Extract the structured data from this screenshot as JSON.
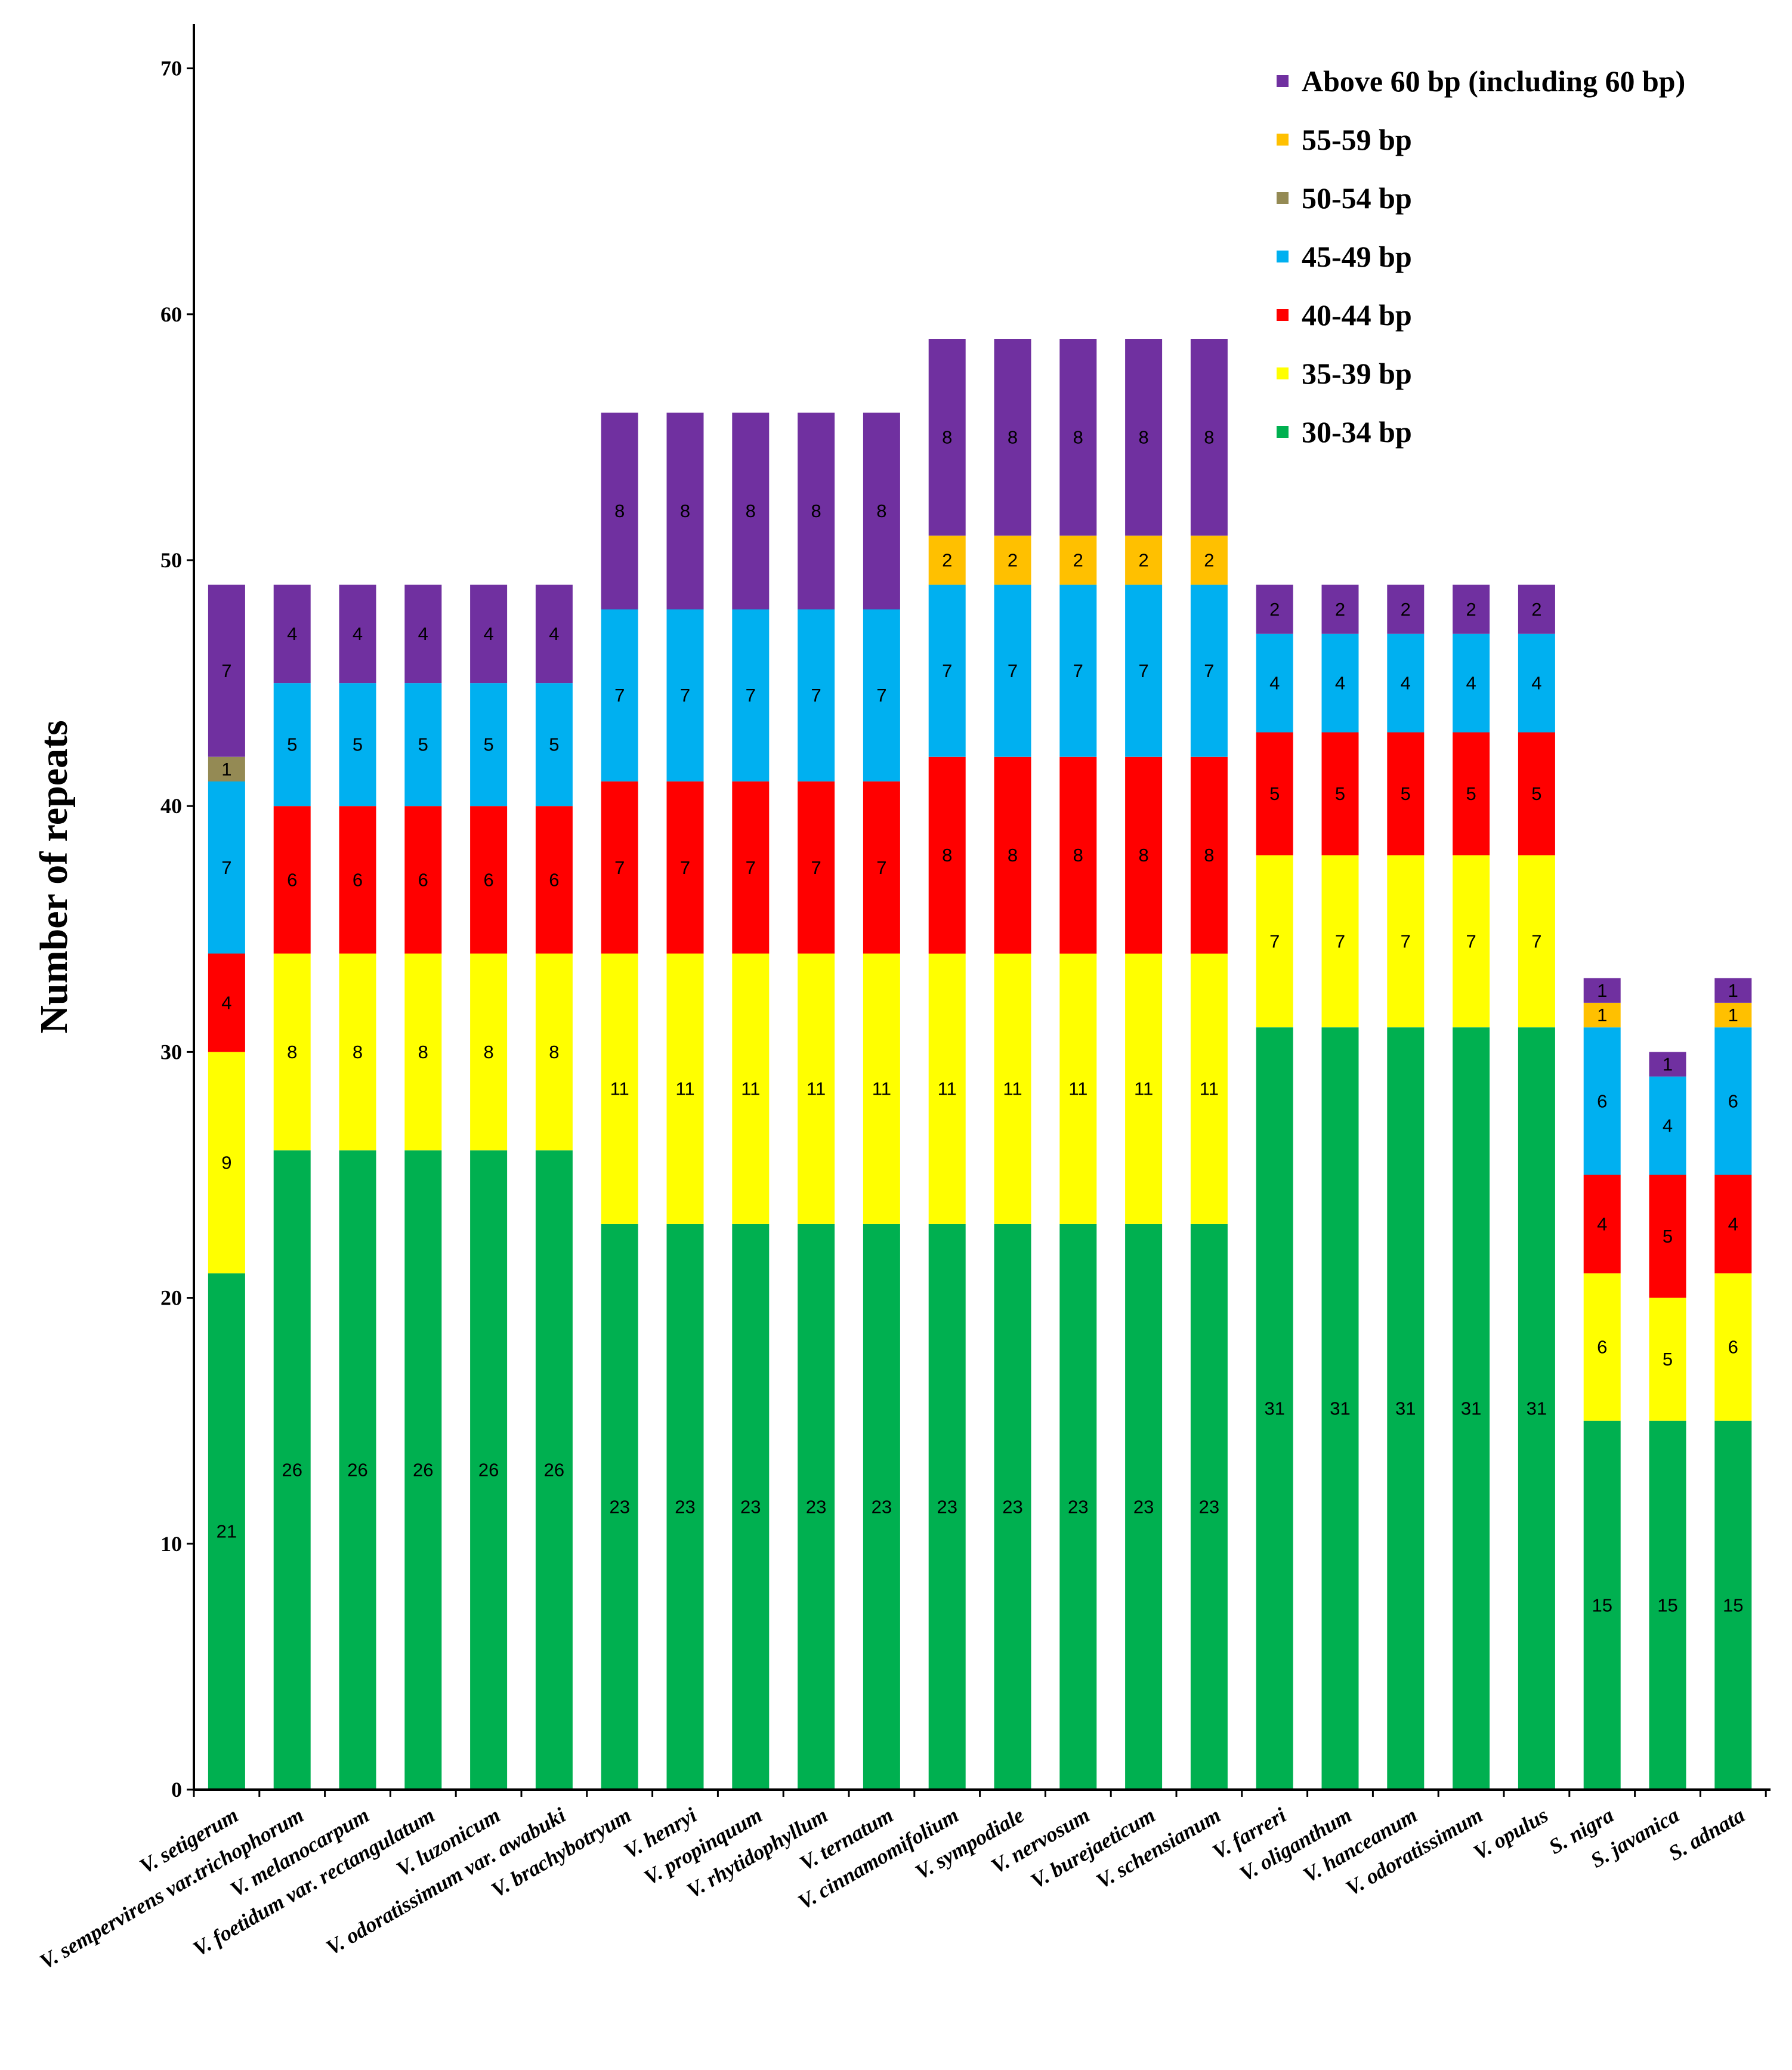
{
  "chart_data": {
    "type": "bar",
    "stacked": true,
    "title": "",
    "xlabel": "",
    "ylabel": "Number of repeats",
    "ylim": [
      0,
      70
    ],
    "yticks": [
      0,
      10,
      20,
      30,
      40,
      50,
      60,
      70
    ],
    "grid": false,
    "legend_position": "top-right",
    "categories": [
      "V. setigerum",
      "V. sempervirens var.trichophorum",
      "V. melanocarpum",
      "V. foetidum var. rectangulatum",
      "V. luzonicum",
      "V. odoratissimum var. awabuki",
      "V. brachybotryum",
      "V. henryi",
      "V. propinquum",
      "V. rhytidophyllum",
      "V. ternatum",
      "V. cinnamomifolium",
      "V. sympodiale",
      "V. nervosum",
      "V. burejaeticum",
      "V. schensianum",
      "V. farreri",
      "V. oliganthum",
      "V. hanceanum",
      "V. odoratissimum",
      "V. opulus",
      "S. nigra",
      "S. javanica",
      "S. adnata"
    ],
    "series": [
      {
        "name": "30-34 bp",
        "color": "#00b050",
        "values": [
          21,
          26,
          26,
          26,
          26,
          26,
          23,
          23,
          23,
          23,
          23,
          23,
          23,
          23,
          23,
          23,
          31,
          31,
          31,
          31,
          31,
          15,
          15,
          15
        ]
      },
      {
        "name": "35-39 bp",
        "color": "#ffff00",
        "values": [
          9,
          8,
          8,
          8,
          8,
          8,
          11,
          11,
          11,
          11,
          11,
          11,
          11,
          11,
          11,
          11,
          7,
          7,
          7,
          7,
          7,
          6,
          5,
          6
        ]
      },
      {
        "name": "40-44 bp",
        "color": "#ff0000",
        "values": [
          4,
          6,
          6,
          6,
          6,
          6,
          7,
          7,
          7,
          7,
          7,
          8,
          8,
          8,
          8,
          8,
          5,
          5,
          5,
          5,
          5,
          4,
          5,
          4
        ]
      },
      {
        "name": "45-49 bp",
        "color": "#00b0f0",
        "values": [
          7,
          5,
          5,
          5,
          5,
          5,
          7,
          7,
          7,
          7,
          7,
          7,
          7,
          7,
          7,
          7,
          4,
          4,
          4,
          4,
          4,
          6,
          4,
          6
        ]
      },
      {
        "name": "50-54 bp",
        "color": "#948a54",
        "values": [
          1,
          0,
          0,
          0,
          0,
          0,
          0,
          0,
          0,
          0,
          0,
          0,
          0,
          0,
          0,
          0,
          0,
          0,
          0,
          0,
          0,
          0,
          0,
          0
        ]
      },
      {
        "name": "55-59 bp",
        "color": "#ffc000",
        "values": [
          0,
          0,
          0,
          0,
          0,
          0,
          0,
          0,
          0,
          0,
          0,
          2,
          2,
          2,
          2,
          2,
          0,
          0,
          0,
          0,
          0,
          1,
          0,
          1
        ]
      },
      {
        "name": "Above 60 bp (including 60 bp)",
        "color": "#7030a0",
        "values": [
          7,
          4,
          4,
          4,
          4,
          4,
          8,
          8,
          8,
          8,
          8,
          8,
          8,
          8,
          8,
          8,
          2,
          2,
          2,
          2,
          2,
          1,
          1,
          1
        ]
      }
    ],
    "legend_order": [
      "Above 60 bp (including 60 bp)",
      "55-59 bp",
      "50-54 bp",
      "45-49 bp",
      "40-44 bp",
      "35-39 bp",
      "30-34 bp"
    ]
  }
}
